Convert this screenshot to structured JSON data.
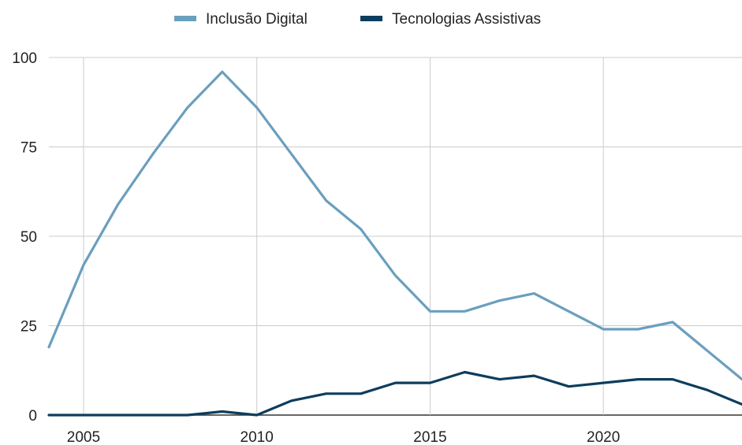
{
  "chart_data": {
    "type": "line",
    "title": "",
    "xlabel": "",
    "ylabel": "",
    "x": [
      2004,
      2005,
      2006,
      2007,
      2008,
      2009,
      2010,
      2011,
      2012,
      2013,
      2014,
      2015,
      2016,
      2017,
      2018,
      2019,
      2020,
      2021,
      2022,
      2023,
      2024
    ],
    "xlim": [
      2004,
      2024
    ],
    "ylim": [
      0,
      100
    ],
    "x_ticks": [
      2005,
      2010,
      2015,
      2020
    ],
    "y_ticks": [
      0,
      25,
      50,
      75,
      100
    ],
    "grid": true,
    "legend_position": "top",
    "series": [
      {
        "name": "Inclusão Digital",
        "color": "#6a9fbe",
        "values": [
          19,
          42,
          59,
          73,
          86,
          96,
          86,
          73,
          60,
          52,
          39,
          29,
          29,
          32,
          34,
          29,
          24,
          24,
          26,
          18,
          10
        ]
      },
      {
        "name": "Tecnologias Assistivas",
        "color": "#0d3d5e",
        "values": [
          0,
          0,
          0,
          0,
          0,
          1,
          0,
          4,
          6,
          6,
          9,
          9,
          12,
          10,
          11,
          8,
          9,
          10,
          10,
          7,
          3
        ]
      }
    ]
  }
}
